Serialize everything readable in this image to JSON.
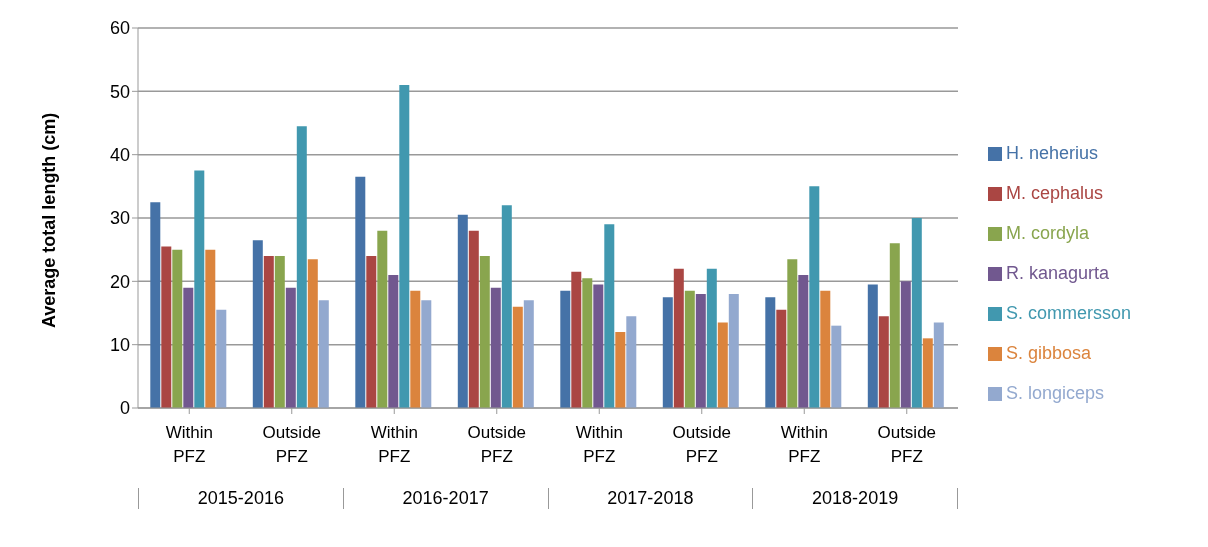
{
  "chart_data": {
    "type": "bar",
    "ylabel": "Average total length (cm)",
    "categories": [
      "Within PFZ",
      "Outside PFZ",
      "Within PFZ",
      "Outside PFZ",
      "Within PFZ",
      "Outside PFZ",
      "Within PFZ",
      "Outside PFZ"
    ],
    "annotations": [
      "2015-2016",
      "2016-2017",
      "2017-2018",
      "2018-2019"
    ],
    "series": [
      {
        "name": "H. neherius",
        "color": "#4572a7",
        "values": [
          32.5,
          26.5,
          36.5,
          30.5,
          18.5,
          17.5,
          17.5,
          19.5
        ]
      },
      {
        "name": "M. cephalus",
        "color": "#aa4643",
        "values": [
          25.5,
          24,
          24,
          28,
          21.5,
          22,
          15.5,
          14.5
        ]
      },
      {
        "name": "M. cordyla",
        "color": "#89a54e",
        "values": [
          25,
          24,
          28,
          24,
          20.5,
          18.5,
          23.5,
          26
        ]
      },
      {
        "name": "R. kanagurta",
        "color": "#71588f",
        "values": [
          19,
          19,
          21,
          19,
          19.5,
          18,
          21,
          20
        ]
      },
      {
        "name": "S. commersson",
        "color": "#4198af",
        "values": [
          37.5,
          44.5,
          51,
          32,
          29,
          22,
          35,
          30
        ]
      },
      {
        "name": "S. gibbosa",
        "color": "#db843d",
        "values": [
          25,
          23.5,
          18.5,
          16,
          12,
          13.5,
          18.5,
          11
        ]
      },
      {
        "name": "S. longiceps",
        "color": "#93a9cf",
        "values": [
          15.5,
          17,
          17,
          17,
          14.5,
          18,
          13,
          13.5
        ]
      }
    ],
    "ylim": [
      0,
      60
    ],
    "yticks": [
      0,
      10,
      20,
      30,
      40,
      50,
      60
    ],
    "grid": "y",
    "legend": "right"
  }
}
